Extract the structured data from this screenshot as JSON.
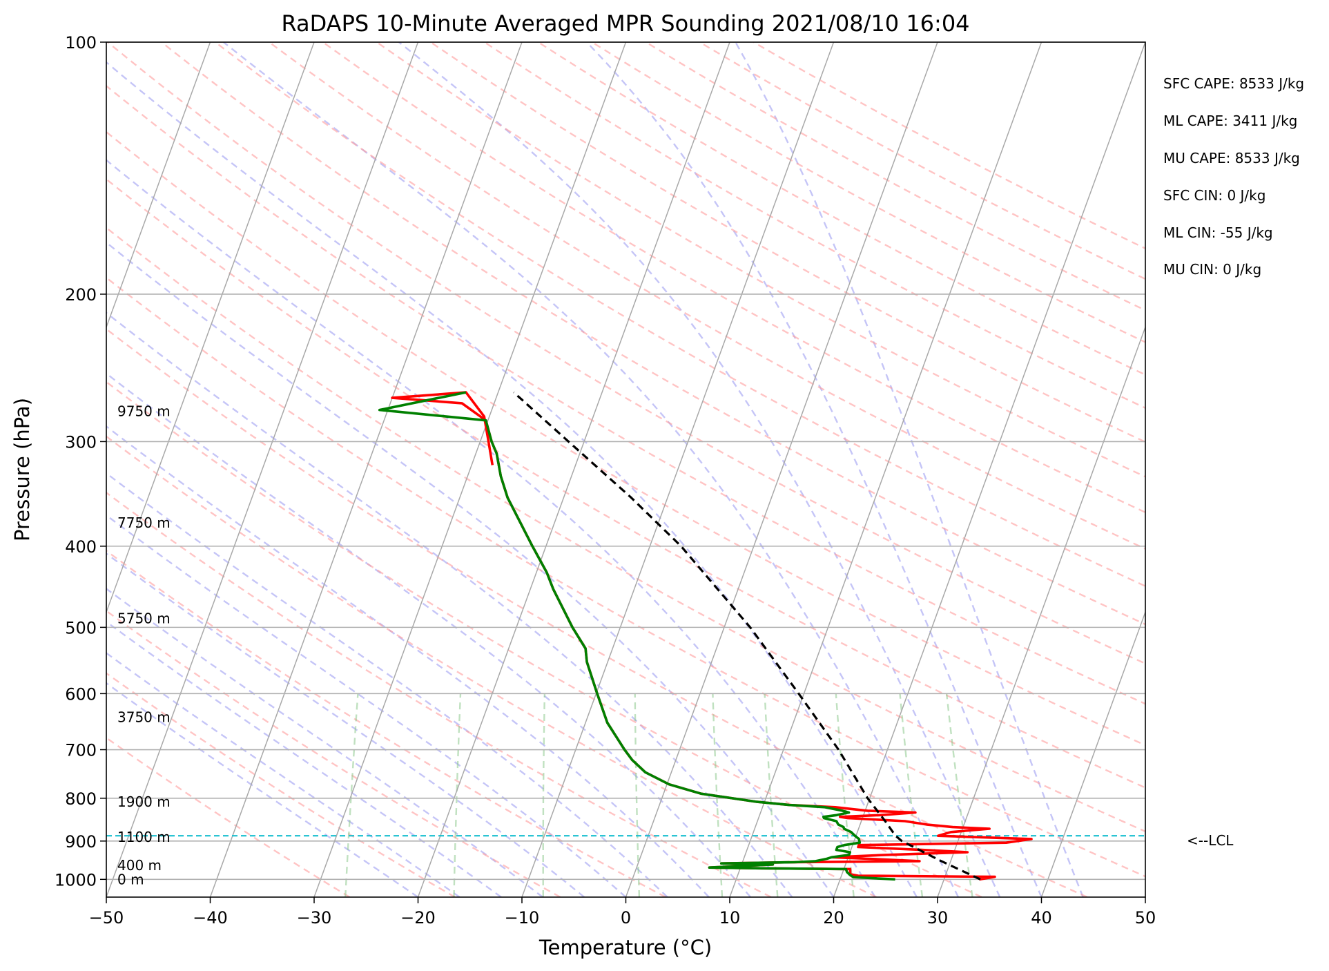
{
  "chart_data": {
    "type": "skew-t",
    "title": "RaDAPS 10-Minute Averaged MPR Sounding 2021/08/10 16:04",
    "xlabel": "Temperature (°C)",
    "ylabel": "Pressure (hPa)",
    "xlim": [
      -50,
      50
    ],
    "ylim": [
      1050,
      100
    ],
    "yscale": "log",
    "grid": true,
    "x_ticks": [
      "−50",
      "−40",
      "−30",
      "−20",
      "−10",
      "0",
      "10",
      "20",
      "30",
      "40",
      "50"
    ],
    "y_ticks": [
      "100",
      "200",
      "300",
      "400",
      "500",
      "600",
      "700",
      "800",
      "900",
      "1000"
    ],
    "height_labels": [
      {
        "p": 1000,
        "label": "0 m"
      },
      {
        "p": 962,
        "label": "400 m"
      },
      {
        "p": 890,
        "label": "1100 m"
      },
      {
        "p": 808,
        "label": "1900 m"
      },
      {
        "p": 640,
        "label": "3750 m"
      },
      {
        "p": 488,
        "label": "5750 m"
      },
      {
        "p": 375,
        "label": "7750 m"
      },
      {
        "p": 276,
        "label": "9750 m"
      }
    ],
    "lcl": {
      "p": 887,
      "label": "<--LCL"
    },
    "stats": [
      "SFC CAPE: 8533 J/kg",
      "ML CAPE: 3411 J/kg",
      "MU CAPE: 8533 J/kg",
      "SFC CIN: 0 J/kg",
      "ML CIN: -55 J/kg",
      "MU CIN: 0 J/kg"
    ],
    "series": [
      {
        "role": "temperature",
        "color": "#ff0000",
        "points": [
          [
            1000,
            33.4
          ],
          [
            993,
            34.8
          ],
          [
            990,
            21.6
          ],
          [
            986,
            20.8
          ],
          [
            972,
            20.6
          ],
          [
            970,
            12
          ],
          [
            968,
            7
          ],
          [
            960,
            13
          ],
          [
            957,
            8
          ],
          [
            954,
            15
          ],
          [
            951,
            27
          ],
          [
            945,
            22
          ],
          [
            941,
            18.4
          ],
          [
            935,
            23.5
          ],
          [
            928,
            31.3
          ],
          [
            922,
            26.8
          ],
          [
            915,
            20.6
          ],
          [
            910,
            20.6
          ],
          [
            904,
            34.7
          ],
          [
            895,
            37.0
          ],
          [
            887,
            27.9
          ],
          [
            878,
            29.0
          ],
          [
            870,
            32.6
          ],
          [
            866,
            29.0
          ],
          [
            860,
            26.4
          ],
          [
            852,
            24.2
          ],
          [
            845,
            18.6
          ],
          [
            842,
            17.8
          ],
          [
            838,
            21.6
          ],
          [
            832,
            24.9
          ],
          [
            828,
            20.2
          ],
          [
            820,
            17.0
          ],
          [
            815,
            12.5
          ],
          [
            808,
            9.3
          ],
          [
            790,
            3.6
          ],
          [
            770,
            0.2
          ],
          [
            745,
            -2.5
          ],
          [
            720,
            -4.2
          ],
          [
            700,
            -5.3
          ],
          [
            650,
            -7.9
          ],
          [
            600,
            -9.9
          ],
          [
            550,
            -12.0
          ],
          [
            530,
            -12.6
          ],
          [
            500,
            -14.6
          ],
          [
            450,
            -17.8
          ],
          [
            430,
            -19.0
          ],
          [
            400,
            -21.3
          ],
          [
            350,
            -25.4
          ],
          [
            330,
            -26.8
          ],
          [
            310,
            -28.0
          ],
          [
            300,
            -28.9
          ],
          [
            283,
            -30.2
          ],
          [
            270,
            -33.1
          ],
          [
            266,
            -40.0
          ],
          [
            262,
            -33.1
          ],
          [
            280,
            -30.5
          ],
          [
            300,
            -29.2
          ],
          [
            320,
            -28.0
          ]
        ]
      },
      {
        "role": "dewpoint",
        "color": "#008000",
        "points": [
          [
            1000,
            25.3
          ],
          [
            994,
            21.2
          ],
          [
            988,
            20.8
          ],
          [
            980,
            20.4
          ],
          [
            972,
            20.2
          ],
          [
            970,
            12
          ],
          [
            968,
            7
          ],
          [
            960,
            13
          ],
          [
            957,
            8
          ],
          [
            954,
            15
          ],
          [
            951,
            17
          ],
          [
            945,
            18
          ],
          [
            941,
            18.4
          ],
          [
            935,
            20
          ],
          [
            928,
            20
          ],
          [
            922,
            18.6
          ],
          [
            915,
            18.6
          ],
          [
            910,
            19.2
          ],
          [
            904,
            20.6
          ],
          [
            895,
            20.4
          ],
          [
            887,
            19.9
          ],
          [
            878,
            19.4
          ],
          [
            870,
            18.6
          ],
          [
            866,
            18.5
          ],
          [
            860,
            17.9
          ],
          [
            852,
            17.6
          ],
          [
            845,
            16.3
          ],
          [
            842,
            16.2
          ],
          [
            838,
            17.4
          ],
          [
            832,
            18.5
          ],
          [
            828,
            17.8
          ],
          [
            820,
            16.0
          ],
          [
            815,
            12.5
          ],
          [
            808,
            9.3
          ],
          [
            790,
            3.6
          ],
          [
            770,
            0.2
          ],
          [
            745,
            -2.5
          ],
          [
            720,
            -4.2
          ],
          [
            700,
            -5.3
          ],
          [
            650,
            -7.9
          ],
          [
            600,
            -9.9
          ],
          [
            550,
            -12.0
          ],
          [
            530,
            -12.6
          ],
          [
            500,
            -14.6
          ],
          [
            450,
            -17.8
          ],
          [
            430,
            -19.0
          ],
          [
            400,
            -21.3
          ],
          [
            350,
            -25.4
          ],
          [
            330,
            -26.8
          ],
          [
            310,
            -28.0
          ],
          [
            300,
            -28.9
          ],
          [
            283,
            -30.2
          ],
          [
            275,
            -40.8
          ],
          [
            262,
            -33.1
          ]
        ]
      },
      {
        "role": "parcel",
        "color": "#000000",
        "points": [
          [
            1000,
            33.5
          ],
          [
            950,
            29.0
          ],
          [
            900,
            24.6
          ],
          [
            887,
            23.8
          ],
          [
            850,
            22.2
          ],
          [
            800,
            19.8
          ],
          [
            700,
            15.3
          ],
          [
            600,
            9.5
          ],
          [
            500,
            2.5
          ],
          [
            400,
            -7.0
          ],
          [
            350,
            -13.5
          ],
          [
            300,
            -21.5
          ],
          [
            262,
            -28.5
          ]
        ]
      }
    ]
  }
}
